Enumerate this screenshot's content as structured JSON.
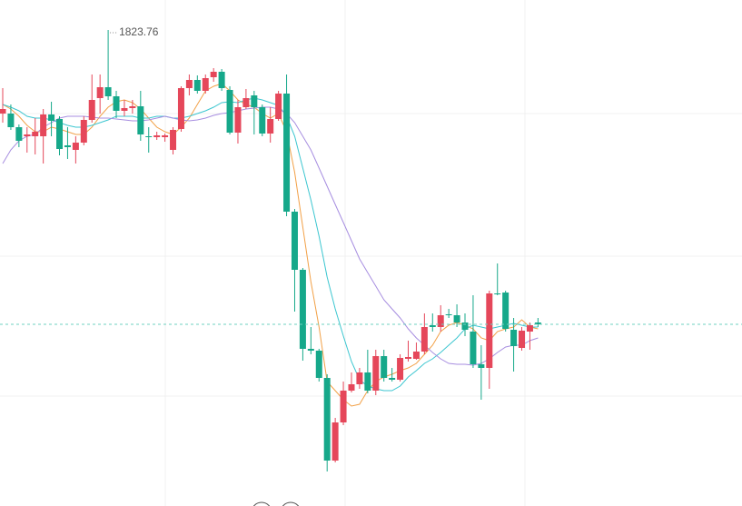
{
  "chart_data": {
    "type": "candlestick",
    "up_color": "#e5475a",
    "down_color": "#16a88a",
    "ylim": [
      1818.52,
      1824.09
    ],
    "grid": true,
    "last_price_line": true,
    "open": [
      1822.84,
      1822.84,
      1822.69,
      1822.59,
      1822.59,
      1822.59,
      1822.83,
      1822.78,
      1822.49,
      1822.44,
      1822.52,
      1822.77,
      1823.01,
      1823.13,
      1823.03,
      1822.87,
      1822.9,
      1822.92,
      1822.59,
      1822.58,
      1822.58,
      1822.44,
      1822.67,
      1823.12,
      1823.21,
      1823.09,
      1823.24,
      1823.3,
      1823.1,
      1822.63,
      1822.91,
      1823.04,
      1822.91,
      1822.62,
      1822.78,
      1823.06,
      1821.76,
      1821.12,
      1820.25,
      1820.23,
      1819.93,
      1819.02,
      1819.44,
      1819.79,
      1819.86,
      1819.99,
      1819.79,
      1820.17,
      1819.93,
      1819.91,
      1820.14,
      1820.14,
      1820.22,
      1820.51,
      1820.49,
      1820.63,
      1820.62,
      1820.54,
      1820.44,
      1820.08,
      1820.04,
      1820.86,
      1820.87,
      1820.46,
      1820.26,
      1820.44,
      1820.54
    ],
    "high": [
      1823.12,
      1822.94,
      1822.72,
      1822.69,
      1822.79,
      1822.89,
      1822.97,
      1822.81,
      1822.69,
      1822.59,
      1822.81,
      1823.27,
      1823.27,
      1823.76,
      1823.09,
      1822.99,
      1822.99,
      1823.09,
      1822.69,
      1822.64,
      1822.62,
      1822.69,
      1823.14,
      1823.27,
      1823.26,
      1823.27,
      1823.34,
      1823.33,
      1823.14,
      1822.99,
      1823.11,
      1823.09,
      1822.94,
      1822.91,
      1823.09,
      1823.27,
      1821.79,
      1821.14,
      1820.49,
      1820.25,
      1819.97,
      1819.49,
      1819.89,
      1819.99,
      1820.04,
      1820.24,
      1820.24,
      1820.24,
      1820.04,
      1820.19,
      1820.34,
      1820.32,
      1820.64,
      1820.64,
      1820.73,
      1820.69,
      1820.74,
      1820.64,
      1820.84,
      1820.29,
      1820.89,
      1821.19,
      1820.89,
      1820.59,
      1820.49,
      1820.54,
      1820.59
    ],
    "low": [
      1822.74,
      1822.66,
      1822.47,
      1822.41,
      1822.39,
      1822.29,
      1822.59,
      1822.38,
      1822.34,
      1822.29,
      1822.49,
      1822.74,
      1822.84,
      1822.99,
      1822.79,
      1822.81,
      1822.84,
      1822.54,
      1822.41,
      1822.55,
      1822.53,
      1822.39,
      1822.64,
      1823.04,
      1823.06,
      1823.06,
      1823.19,
      1823.09,
      1822.61,
      1822.51,
      1822.89,
      1822.61,
      1822.59,
      1822.52,
      1822.76,
      1821.71,
      1820.66,
      1820.12,
      1820.19,
      1819.89,
      1818.9,
      1819.0,
      1819.41,
      1819.77,
      1819.81,
      1819.76,
      1819.74,
      1819.89,
      1819.89,
      1819.89,
      1820.11,
      1820.13,
      1820.19,
      1820.44,
      1820.44,
      1820.59,
      1820.49,
      1820.39,
      1820.04,
      1819.69,
      1819.81,
      1820.84,
      1820.44,
      1820.0,
      1820.23,
      1820.24,
      1820.49
    ],
    "close": [
      1822.89,
      1822.69,
      1822.54,
      1822.61,
      1822.64,
      1822.83,
      1822.76,
      1822.45,
      1822.47,
      1822.52,
      1822.77,
      1822.99,
      1823.13,
      1823.03,
      1822.87,
      1822.9,
      1822.92,
      1822.61,
      1822.58,
      1822.6,
      1822.6,
      1822.66,
      1823.12,
      1823.21,
      1823.09,
      1823.23,
      1823.3,
      1823.12,
      1822.63,
      1822.91,
      1823.01,
      1822.91,
      1822.62,
      1822.78,
      1823.06,
      1821.76,
      1821.12,
      1820.25,
      1820.23,
      1819.93,
      1819.02,
      1819.44,
      1819.79,
      1819.86,
      1819.99,
      1819.79,
      1820.17,
      1819.93,
      1819.91,
      1820.15,
      1820.16,
      1820.22,
      1820.49,
      1820.49,
      1820.62,
      1820.62,
      1820.54,
      1820.46,
      1820.08,
      1820.04,
      1820.86,
      1820.85,
      1820.47,
      1820.28,
      1820.45,
      1820.51,
      1820.52
    ],
    "series": [
      {
        "color": "#f2a148",
        "values": [
          1822.94,
          1822.89,
          1822.81,
          1822.71,
          1822.64,
          1822.64,
          1822.69,
          1822.67,
          1822.64,
          1822.61,
          1822.61,
          1822.69,
          1822.81,
          1822.91,
          1822.97,
          1822.99,
          1822.96,
          1822.89,
          1822.79,
          1822.69,
          1822.64,
          1822.61,
          1822.69,
          1822.79,
          1822.94,
          1823.09,
          1823.14,
          1823.17,
          1823.09,
          1822.99,
          1822.94,
          1822.91,
          1822.84,
          1822.79,
          1822.84,
          1822.64,
          1822.19,
          1821.59,
          1820.99,
          1820.49,
          1819.89,
          1819.79,
          1819.69,
          1819.62,
          1819.64,
          1819.79,
          1819.89,
          1819.94,
          1819.97,
          1820.01,
          1820.04,
          1820.09,
          1820.19,
          1820.29,
          1820.44,
          1820.51,
          1820.54,
          1820.51,
          1820.47,
          1820.37,
          1820.34,
          1820.44,
          1820.47,
          1820.49,
          1820.57,
          1820.49,
          1820.47
        ]
      },
      {
        "color": "#3cc6d0",
        "values": [
          1822.94,
          1822.91,
          1822.87,
          1822.81,
          1822.79,
          1822.79,
          1822.77,
          1822.74,
          1822.71,
          1822.69,
          1822.69,
          1822.71,
          1822.74,
          1822.77,
          1822.81,
          1822.81,
          1822.81,
          1822.79,
          1822.79,
          1822.81,
          1822.81,
          1822.79,
          1822.79,
          1822.81,
          1822.84,
          1822.87,
          1822.91,
          1822.96,
          1822.97,
          1822.96,
          1822.99,
          1823.01,
          1822.99,
          1822.96,
          1822.93,
          1822.81,
          1822.59,
          1822.24,
          1821.89,
          1821.49,
          1821.04,
          1820.69,
          1820.39,
          1820.11,
          1819.91,
          1819.84,
          1819.81,
          1819.79,
          1819.79,
          1819.84,
          1819.94,
          1820.01,
          1820.09,
          1820.14,
          1820.21,
          1820.29,
          1820.37,
          1820.47,
          1820.51,
          1820.49,
          1820.47,
          1820.49,
          1820.51,
          1820.53,
          1820.51,
          1820.49,
          1820.49
        ]
      },
      {
        "color": "#a78ee0",
        "values": [
          1822.29,
          1822.44,
          1822.54,
          1822.59,
          1822.61,
          1822.69,
          1822.74,
          1822.79,
          1822.81,
          1822.81,
          1822.81,
          1822.8,
          1822.79,
          1822.79,
          1822.78,
          1822.77,
          1822.76,
          1822.76,
          1822.77,
          1822.79,
          1822.81,
          1822.79,
          1822.77,
          1822.76,
          1822.77,
          1822.79,
          1822.82,
          1822.84,
          1822.85,
          1822.87,
          1822.89,
          1822.9,
          1822.91,
          1822.91,
          1822.89,
          1822.84,
          1822.74,
          1822.59,
          1822.44,
          1822.24,
          1822.04,
          1821.84,
          1821.64,
          1821.44,
          1821.24,
          1821.09,
          1820.94,
          1820.79,
          1820.69,
          1820.59,
          1820.47,
          1820.37,
          1820.29,
          1820.21,
          1820.14,
          1820.09,
          1820.08,
          1820.08,
          1820.07,
          1820.09,
          1820.14,
          1820.21,
          1820.27,
          1820.29,
          1820.29,
          1820.34,
          1820.37
        ]
      }
    ]
  }
}
